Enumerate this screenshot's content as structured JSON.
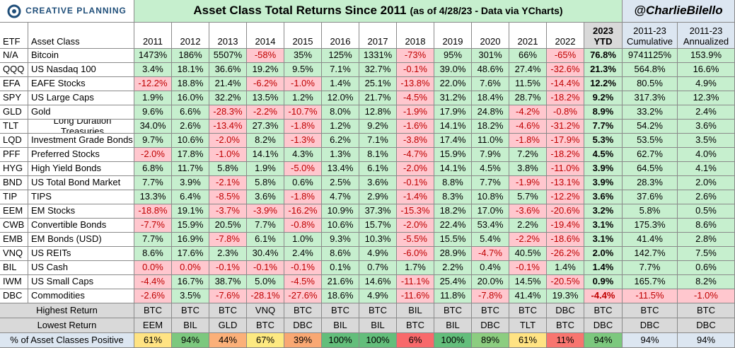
{
  "header": {
    "logo": "CREATIVE PLANNING",
    "title": "Asset Class Total Returns Since 2011",
    "title_note": "(as of 4/28/23 - Data via YCharts)",
    "handle": "@CharlieBilello"
  },
  "table": {
    "columns": [
      "ETF",
      "Asset Class",
      "2011",
      "2012",
      "2013",
      "2014",
      "2015",
      "2016",
      "2017",
      "2018",
      "2019",
      "2020",
      "2021",
      "2022",
      "2023 YTD",
      "2011-23 Cumulative",
      "2011-23 Annualized"
    ],
    "rows": [
      [
        "N/A",
        "Bitcoin",
        "1473%",
        "186%",
        "5507%",
        "-58%",
        "35%",
        "125%",
        "1331%",
        "-73%",
        "95%",
        "301%",
        "66%",
        "-65%",
        "76.8%",
        "9741125%",
        "153.9%"
      ],
      [
        "QQQ",
        "US Nasdaq 100",
        "3.4%",
        "18.1%",
        "36.6%",
        "19.2%",
        "9.5%",
        "7.1%",
        "32.7%",
        "-0.1%",
        "39.0%",
        "48.6%",
        "27.4%",
        "-32.6%",
        "21.3%",
        "564.8%",
        "16.6%"
      ],
      [
        "EFA",
        "EAFE Stocks",
        "-12.2%",
        "18.8%",
        "21.4%",
        "-6.2%",
        "-1.0%",
        "1.4%",
        "25.1%",
        "-13.8%",
        "22.0%",
        "7.6%",
        "11.5%",
        "-14.4%",
        "12.2%",
        "80.5%",
        "4.9%"
      ],
      [
        "SPY",
        "US Large Caps",
        "1.9%",
        "16.0%",
        "32.2%",
        "13.5%",
        "1.2%",
        "12.0%",
        "21.7%",
        "-4.5%",
        "31.2%",
        "18.4%",
        "28.7%",
        "-18.2%",
        "9.2%",
        "317.3%",
        "12.3%"
      ],
      [
        "GLD",
        "Gold",
        "9.6%",
        "6.6%",
        "-28.3%",
        "-2.2%",
        "-10.7%",
        "8.0%",
        "12.8%",
        "-1.9%",
        "17.9%",
        "24.8%",
        "-4.2%",
        "-0.8%",
        "8.9%",
        "33.2%",
        "2.4%"
      ],
      [
        "TLT",
        "Long Duration Treasuries",
        "34.0%",
        "2.6%",
        "-13.4%",
        "27.3%",
        "-1.8%",
        "1.2%",
        "9.2%",
        "-1.6%",
        "14.1%",
        "18.2%",
        "-4.6%",
        "-31.2%",
        "7.7%",
        "54.2%",
        "3.6%"
      ],
      [
        "LQD",
        "Investment Grade Bonds",
        "9.7%",
        "10.6%",
        "-2.0%",
        "8.2%",
        "-1.3%",
        "6.2%",
        "7.1%",
        "-3.8%",
        "17.4%",
        "11.0%",
        "-1.8%",
        "-17.9%",
        "5.3%",
        "53.5%",
        "3.5%"
      ],
      [
        "PFF",
        "Preferred Stocks",
        "-2.0%",
        "17.8%",
        "-1.0%",
        "14.1%",
        "4.3%",
        "1.3%",
        "8.1%",
        "-4.7%",
        "15.9%",
        "7.9%",
        "7.2%",
        "-18.2%",
        "4.5%",
        "62.7%",
        "4.0%"
      ],
      [
        "HYG",
        "High Yield Bonds",
        "6.8%",
        "11.7%",
        "5.8%",
        "1.9%",
        "-5.0%",
        "13.4%",
        "6.1%",
        "-2.0%",
        "14.1%",
        "4.5%",
        "3.8%",
        "-11.0%",
        "3.9%",
        "64.5%",
        "4.1%"
      ],
      [
        "BND",
        "US Total Bond Market",
        "7.7%",
        "3.9%",
        "-2.1%",
        "5.8%",
        "0.6%",
        "2.5%",
        "3.6%",
        "-0.1%",
        "8.8%",
        "7.7%",
        "-1.9%",
        "-13.1%",
        "3.9%",
        "28.3%",
        "2.0%"
      ],
      [
        "TIP",
        "TIPS",
        "13.3%",
        "6.4%",
        "-8.5%",
        "3.6%",
        "-1.8%",
        "4.7%",
        "2.9%",
        "-1.4%",
        "8.3%",
        "10.8%",
        "5.7%",
        "-12.2%",
        "3.6%",
        "37.6%",
        "2.6%"
      ],
      [
        "EEM",
        "EM Stocks",
        "-18.8%",
        "19.1%",
        "-3.7%",
        "-3.9%",
        "-16.2%",
        "10.9%",
        "37.3%",
        "-15.3%",
        "18.2%",
        "17.0%",
        "-3.6%",
        "-20.6%",
        "3.2%",
        "5.8%",
        "0.5%"
      ],
      [
        "CWB",
        "Convertible Bonds",
        "-7.7%",
        "15.9%",
        "20.5%",
        "7.7%",
        "-0.8%",
        "10.6%",
        "15.7%",
        "-2.0%",
        "22.4%",
        "53.4%",
        "2.2%",
        "-19.4%",
        "3.1%",
        "175.3%",
        "8.6%"
      ],
      [
        "EMB",
        "EM Bonds (USD)",
        "7.7%",
        "16.9%",
        "-7.8%",
        "6.1%",
        "1.0%",
        "9.3%",
        "10.3%",
        "-5.5%",
        "15.5%",
        "5.4%",
        "-2.2%",
        "-18.6%",
        "3.1%",
        "41.4%",
        "2.8%"
      ],
      [
        "VNQ",
        "US REITs",
        "8.6%",
        "17.6%",
        "2.3%",
        "30.4%",
        "2.4%",
        "8.6%",
        "4.9%",
        "-6.0%",
        "28.9%",
        "-4.7%",
        "40.5%",
        "-26.2%",
        "2.0%",
        "142.7%",
        "7.5%"
      ],
      [
        "BIL",
        "US Cash",
        "0.0%",
        "0.0%",
        "-0.1%",
        "-0.1%",
        "-0.1%",
        "0.1%",
        "0.7%",
        "1.7%",
        "2.2%",
        "0.4%",
        "-0.1%",
        "1.4%",
        "1.4%",
        "7.7%",
        "0.6%"
      ],
      [
        "IWM",
        "US Small Caps",
        "-4.4%",
        "16.7%",
        "38.7%",
        "5.0%",
        "-4.5%",
        "21.6%",
        "14.6%",
        "-11.1%",
        "25.4%",
        "20.0%",
        "14.5%",
        "-20.5%",
        "0.9%",
        "165.7%",
        "8.2%"
      ],
      [
        "DBC",
        "Commodities",
        "-2.6%",
        "3.5%",
        "-7.6%",
        "-28.1%",
        "-27.6%",
        "18.6%",
        "4.9%",
        "-11.6%",
        "11.8%",
        "-7.8%",
        "41.4%",
        "19.3%",
        "-4.4%",
        "-11.5%",
        "-1.0%"
      ]
    ]
  },
  "footer": {
    "rows": [
      {
        "label": "Highest Return",
        "cells": [
          "BTC",
          "BTC",
          "BTC",
          "VNQ",
          "BTC",
          "BTC",
          "BTC",
          "BIL",
          "BTC",
          "BTC",
          "BTC",
          "DBC",
          "BTC",
          "BTC",
          "BTC"
        ]
      },
      {
        "label": "Lowest Return",
        "cells": [
          "EEM",
          "BIL",
          "GLD",
          "BTC",
          "DBC",
          "BIL",
          "BIL",
          "BTC",
          "BIL",
          "DBC",
          "TLT",
          "BTC",
          "DBC",
          "DBC",
          "DBC"
        ]
      },
      {
        "label": "% of Asset Classes Positive",
        "cells": [
          "61%",
          "94%",
          "44%",
          "67%",
          "39%",
          "100%",
          "100%",
          "6%",
          "100%",
          "89%",
          "61%",
          "11%",
          "94%",
          "94%",
          "94%"
        ]
      }
    ],
    "positive_colors": [
      "#ffe383",
      "#7cc87e",
      "#fbb079",
      "#fde981",
      "#f9a873",
      "#63be7b",
      "#63be7b",
      "#f8696b",
      "#63be7b",
      "#8ccd80",
      "#ffe383",
      "#f8756f",
      "#7cc87e",
      "#dce6f1",
      "#dce6f1"
    ]
  }
}
